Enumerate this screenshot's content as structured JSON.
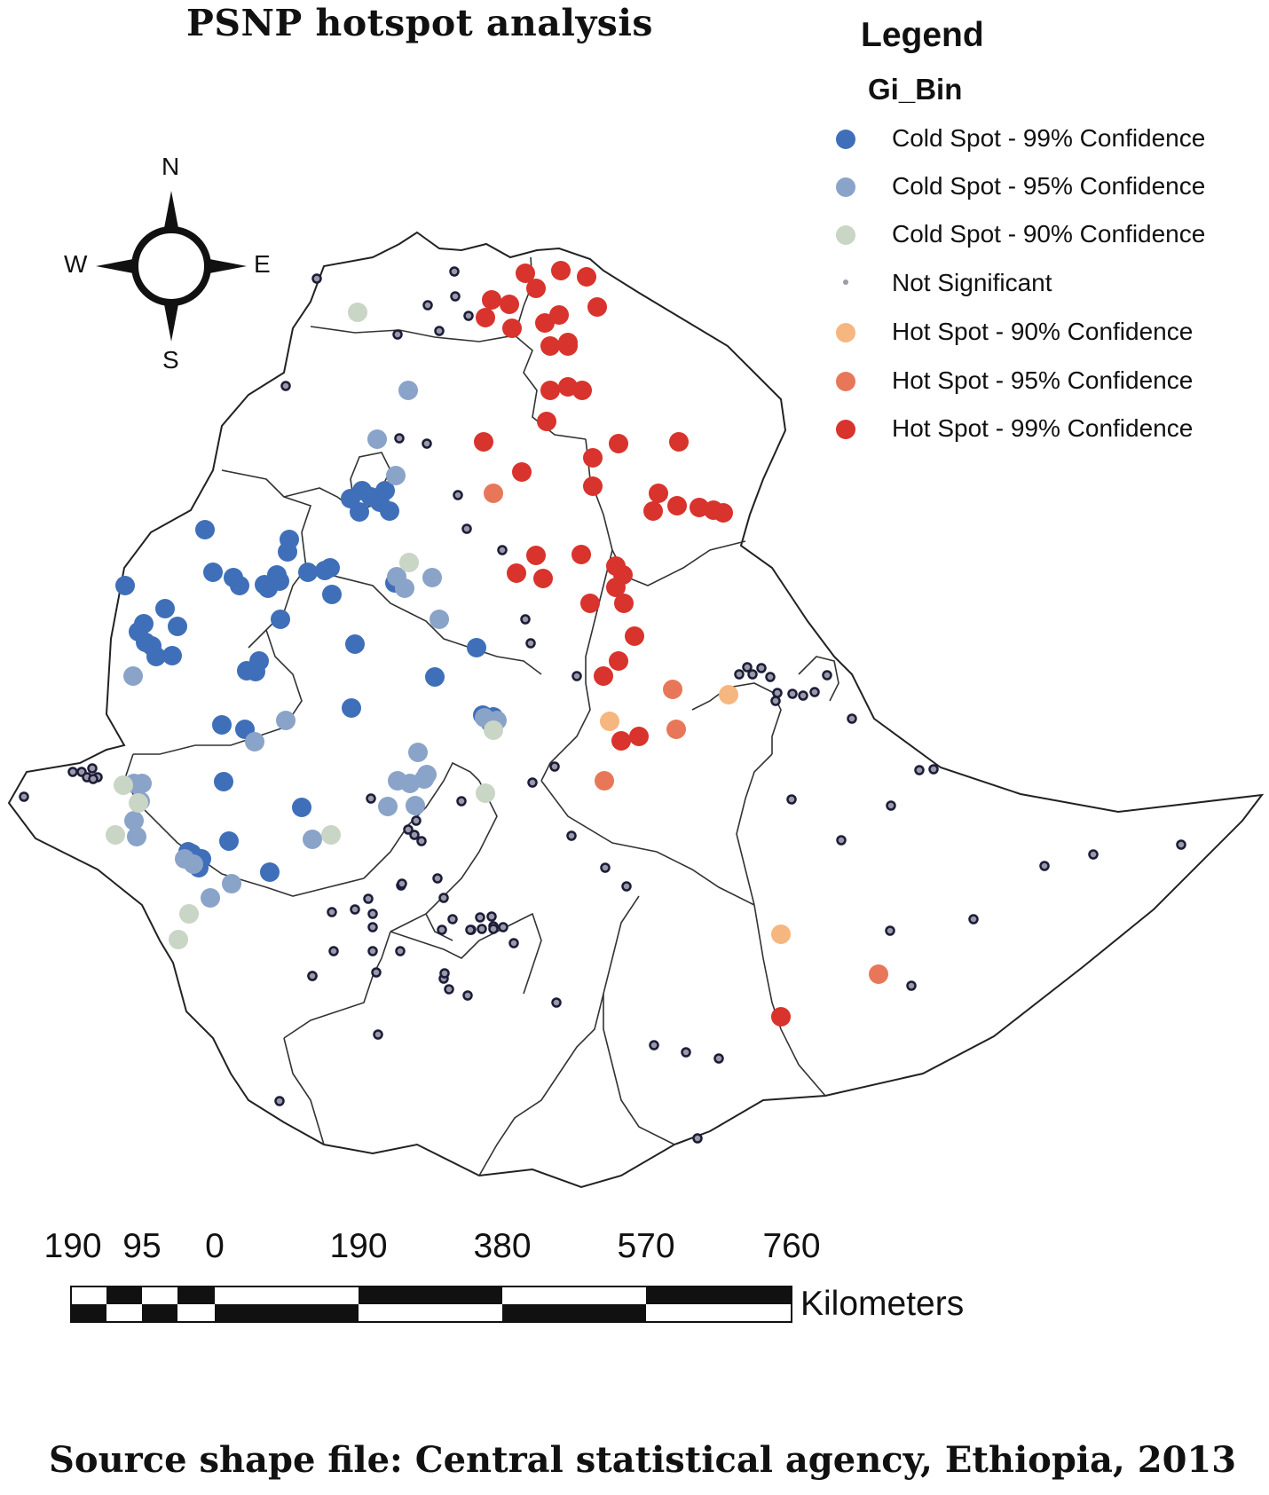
{
  "title": "PSNP hotspot analysis",
  "legend": {
    "title": "Legend",
    "field": "Gi_Bin",
    "items": [
      {
        "label": "Cold Spot - 99% Confidence",
        "color": "#3f6fb8",
        "size": "large"
      },
      {
        "label": "Cold Spot - 95% Confidence",
        "color": "#8aa3c8",
        "size": "large"
      },
      {
        "label": "Cold Spot - 90% Confidence",
        "color": "#c9d5c5",
        "size": "large"
      },
      {
        "label": "Not Significant",
        "color": "#9a9aa8",
        "size": "small"
      },
      {
        "label": "Hot Spot - 90% Confidence",
        "color": "#f6b680",
        "size": "large"
      },
      {
        "label": "Hot Spot - 95% Confidence",
        "color": "#e8775a",
        "size": "large"
      },
      {
        "label": "Hot Spot - 99% Confidence",
        "color": "#d8332c",
        "size": "large"
      }
    ]
  },
  "compass": {
    "n": "N",
    "s": "S",
    "e": "E",
    "w": "W"
  },
  "scale_bar": {
    "labels": [
      "190",
      "95",
      "0",
      "190",
      "380",
      "570",
      "760"
    ],
    "unit": "Kilometers"
  },
  "source": "Source shape file: Central statistical agency, Ethiopia, 2013"
}
